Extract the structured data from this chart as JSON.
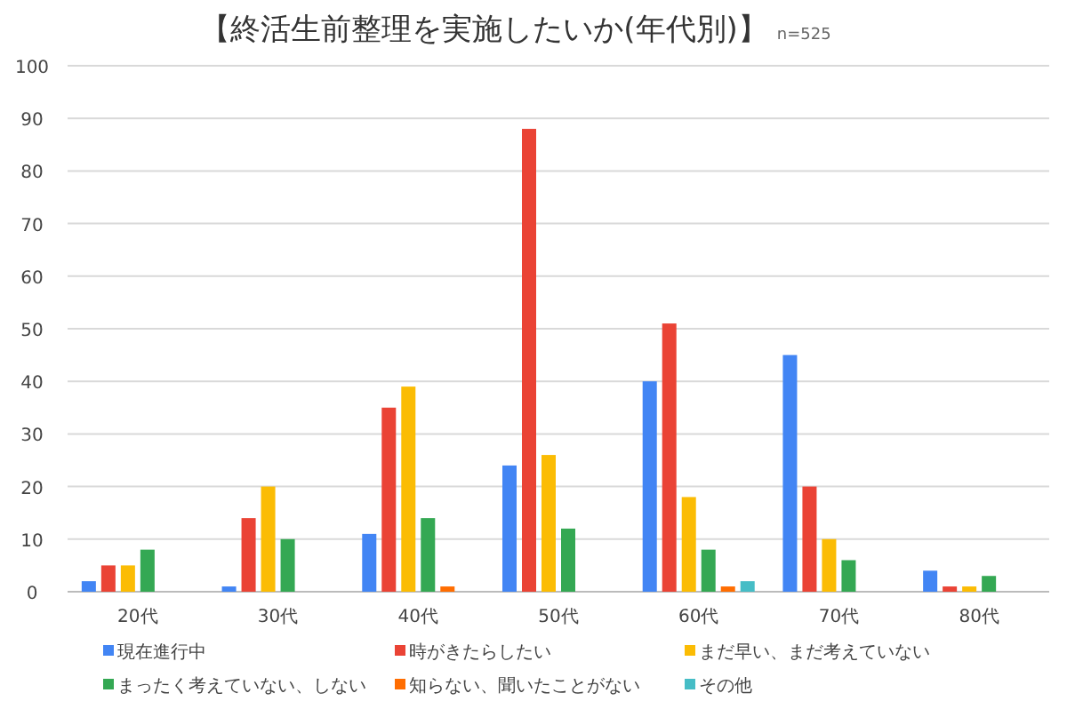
{
  "chart_data": {
    "type": "bar",
    "title": "【終活生前整理を実施したいか(年代別)】",
    "subtitle": "n=525",
    "categories": [
      "20代",
      "30代",
      "40代",
      "50代",
      "60代",
      "70代",
      "80代"
    ],
    "series": [
      {
        "name": "現在進行中",
        "color": "#4285f4",
        "values": [
          2,
          1,
          11,
          24,
          40,
          45,
          4
        ]
      },
      {
        "name": "時がきたらしたい",
        "color": "#ea4335",
        "values": [
          5,
          14,
          35,
          88,
          51,
          20,
          1
        ]
      },
      {
        "name": "まだ早い、まだ考えていない",
        "color": "#fbbc04",
        "values": [
          5,
          20,
          39,
          26,
          18,
          10,
          1
        ]
      },
      {
        "name": "まったく考えていない、しない",
        "color": "#34a853",
        "values": [
          8,
          10,
          14,
          12,
          8,
          6,
          3
        ]
      },
      {
        "name": "知らない、聞いたことがない",
        "color": "#ff6d01",
        "values": [
          0,
          0,
          1,
          0,
          1,
          0,
          0
        ]
      },
      {
        "name": "その他",
        "color": "#46bdc6",
        "values": [
          0,
          0,
          0,
          0,
          2,
          0,
          0
        ]
      }
    ],
    "ylim": [
      0,
      100
    ],
    "yticks": [
      0,
      10,
      20,
      30,
      40,
      50,
      60,
      70,
      80,
      90,
      100
    ],
    "grid": "y",
    "legend": "bottom"
  }
}
